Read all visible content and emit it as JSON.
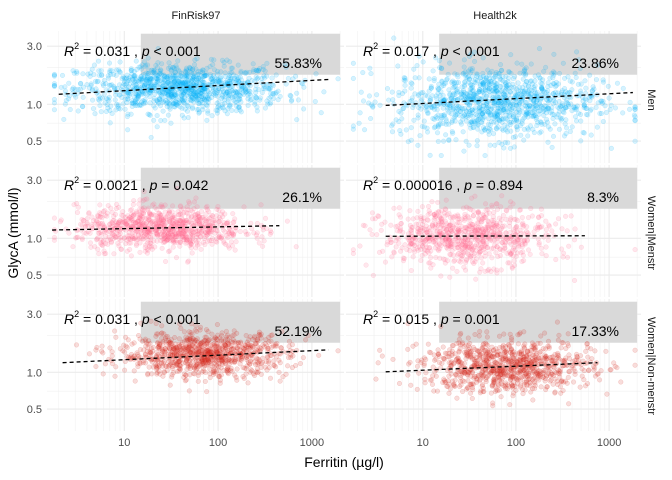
{
  "chart_data": {
    "type": "scatter",
    "xlabel": "Ferritin (µg/l)",
    "ylabel": "GlycA (mmol/l)",
    "x_scale": "log10",
    "y_scale": "log10",
    "xlim": [
      1.5,
      2200
    ],
    "ylim": [
      0.33,
      4.0
    ],
    "xticks": [
      10,
      100,
      1000
    ],
    "xtick_labels": [
      "10",
      "100",
      "1000"
    ],
    "yticks": [
      0.5,
      1.0,
      3.0
    ],
    "ytick_labels": [
      "0.5",
      "1.0",
      "3.0"
    ],
    "grid": true,
    "col_facets": [
      "FinRisk97",
      "Health2k"
    ],
    "row_facets": [
      "Men",
      "Women|Menstr",
      "Women|Non-menstr"
    ],
    "panels": [
      {
        "col": "FinRisk97",
        "row": "Men",
        "color": "#00b0f6",
        "r2_value": "0.031",
        "p_op": "<",
        "p_value": "0.001",
        "pct": "55.83%",
        "fit_x": [
          2,
          1500
        ],
        "fit_y": [
          1.21,
          1.6
        ],
        "cloud": {
          "x_center": 40,
          "x_sd": 0.55,
          "y_center": 1.35,
          "y_sd": 0.1,
          "n": 1100
        }
      },
      {
        "col": "Health2k",
        "row": "Men",
        "color": "#00b0f6",
        "r2_value": "0.017",
        "p_op": "<",
        "p_value": "0.001",
        "pct": "23.86%",
        "fit_x": [
          4,
          1800
        ],
        "fit_y": [
          0.98,
          1.25
        ],
        "cloud": {
          "x_center": 60,
          "x_sd": 0.55,
          "y_center": 1.05,
          "y_sd": 0.15,
          "n": 1100
        }
      },
      {
        "col": "FinRisk97",
        "row": "Women|Menstr",
        "color": "#ff6c91",
        "r2_value": "0.0021",
        "p_op": "=",
        "p_value": "0.042",
        "pct": "26.1%",
        "fit_x": [
          1.7,
          450
        ],
        "fit_y": [
          1.17,
          1.27
        ],
        "cloud": {
          "x_center": 25,
          "x_sd": 0.45,
          "y_center": 1.22,
          "y_sd": 0.09,
          "n": 900
        }
      },
      {
        "col": "Health2k",
        "row": "Women|Menstr",
        "color": "#ff6c91",
        "r2_value": "0.000016",
        "p_op": "=",
        "p_value": "0.894",
        "pct": "8.3%",
        "fit_x": [
          4,
          550
        ],
        "fit_y": [
          1.04,
          1.05
        ],
        "cloud": {
          "x_center": 30,
          "x_sd": 0.45,
          "y_center": 1.04,
          "y_sd": 0.12,
          "n": 800
        }
      },
      {
        "col": "FinRisk97",
        "row": "Women|Non-menstr",
        "color": "#d62a1e",
        "r2_value": "0.031",
        "p_op": "<",
        "p_value": "0.001",
        "pct": "52.19%",
        "fit_x": [
          2.2,
          1500
        ],
        "fit_y": [
          1.2,
          1.53
        ],
        "cloud": {
          "x_center": 70,
          "x_sd": 0.45,
          "y_center": 1.4,
          "y_sd": 0.09,
          "n": 900
        }
      },
      {
        "col": "Health2k",
        "row": "Women|Non-menstr",
        "color": "#d62a1e",
        "r2_value": "0.015",
        "p_op": "=",
        "p_value": "0.001",
        "pct": "17.33%",
        "fit_x": [
          4,
          750
        ],
        "fit_y": [
          1.01,
          1.2
        ],
        "cloud": {
          "x_center": 80,
          "x_sd": 0.45,
          "y_center": 1.12,
          "y_sd": 0.11,
          "n": 900
        }
      }
    ]
  }
}
